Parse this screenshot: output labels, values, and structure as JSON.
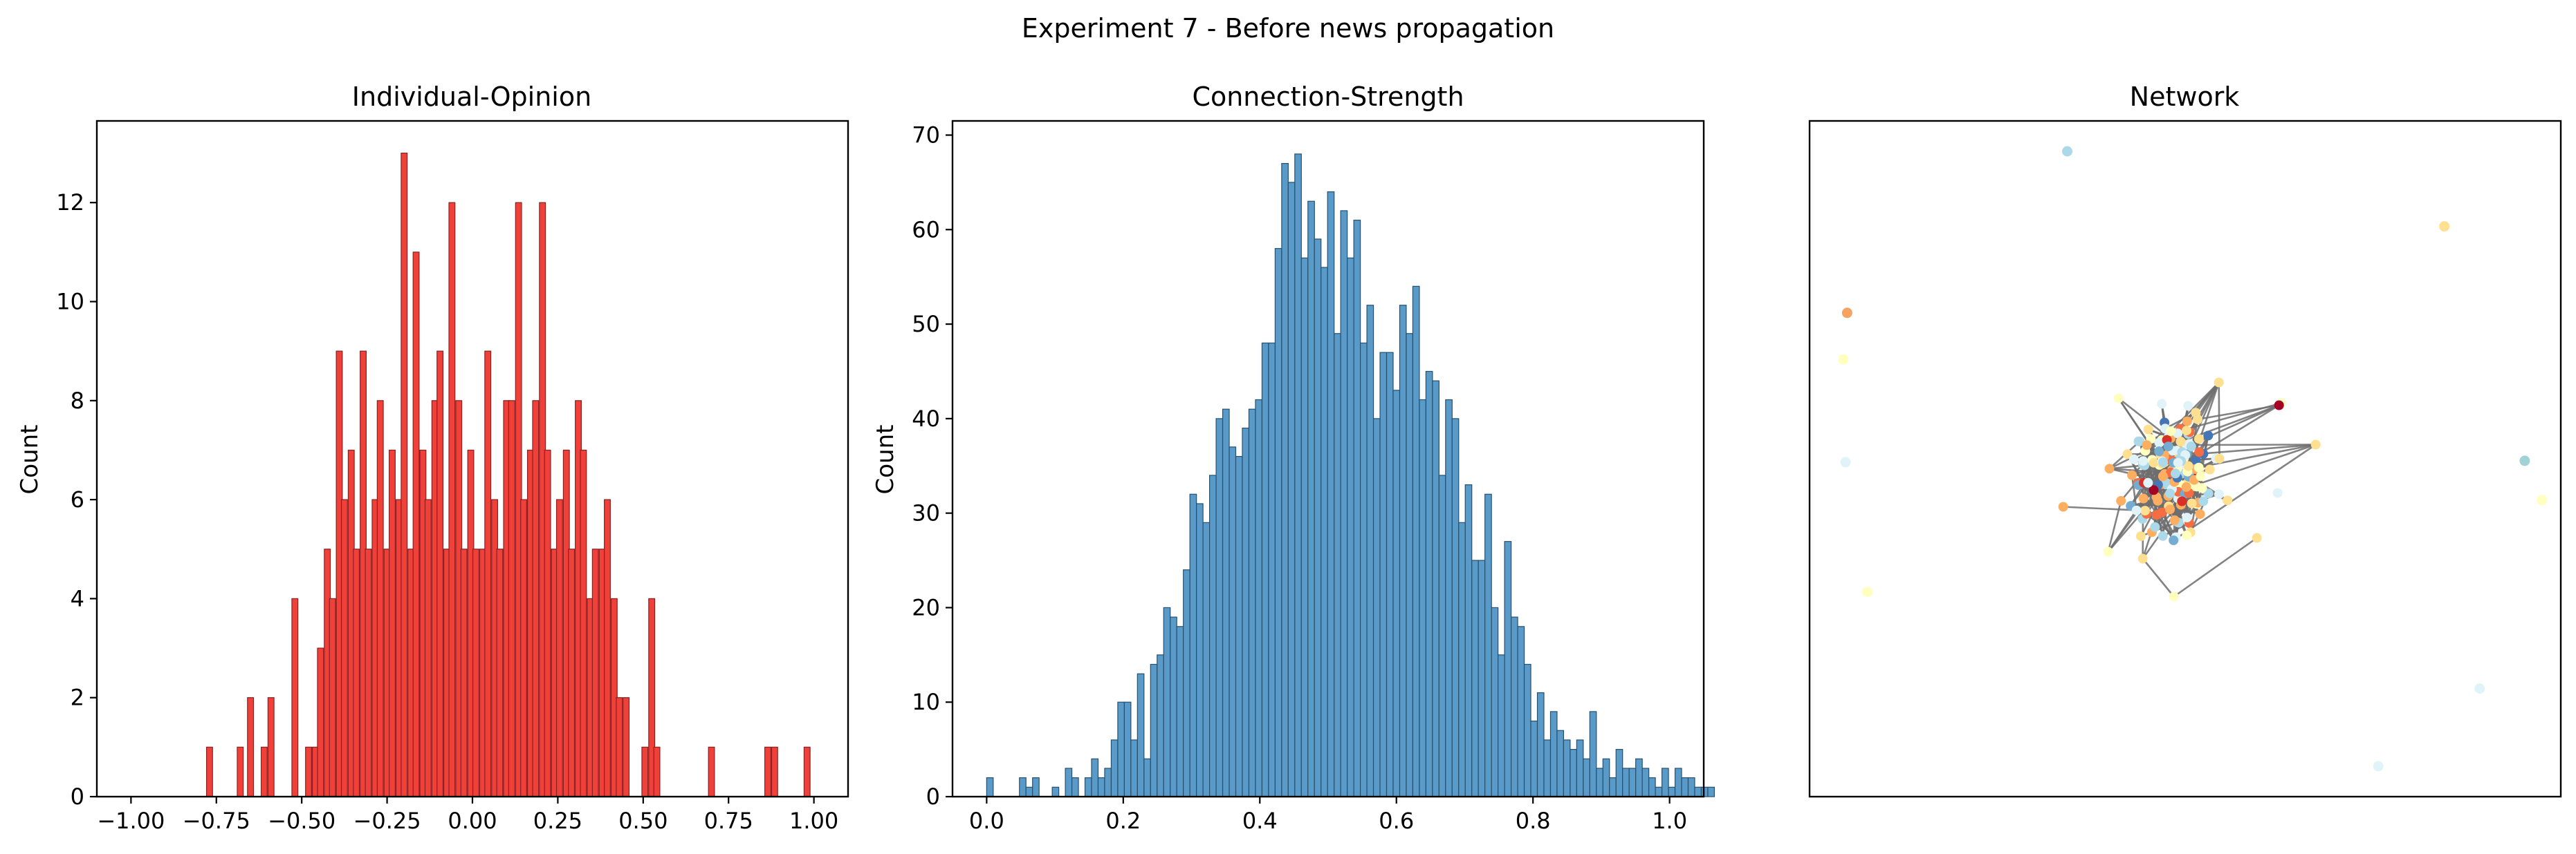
{
  "figure": {
    "suptitle": "Experiment 7 - Before news propagation"
  },
  "chart_data": [
    {
      "type": "bar",
      "title": "Individual-Opinion",
      "xlabel": "",
      "ylabel": "Count",
      "xlim": [
        -1.1,
        1.1
      ],
      "ylim": [
        0,
        13.65
      ],
      "x_ticks": [
        -1.0,
        -0.75,
        -0.5,
        -0.25,
        0.0,
        0.25,
        0.5,
        0.75,
        1.0
      ],
      "x_tick_labels": [
        "−1.00",
        "−0.75",
        "−0.50",
        "−0.25",
        "0.00",
        "0.25",
        "0.50",
        "0.75",
        "1.00"
      ],
      "y_ticks": [
        0,
        2,
        4,
        6,
        8,
        10,
        12
      ],
      "y_tick_labels": [
        "0",
        "2",
        "4",
        "6",
        "8",
        "10",
        "12"
      ],
      "bin_width": 0.0176,
      "bin_centers": [
        -0.77,
        -0.68,
        -0.65,
        -0.61,
        -0.59,
        -0.52,
        -0.48,
        -0.46,
        -0.445,
        -0.425,
        -0.41,
        -0.39,
        -0.375,
        -0.355,
        -0.34,
        -0.32,
        -0.305,
        -0.285,
        -0.27,
        -0.25,
        -0.235,
        -0.215,
        -0.2,
        -0.18,
        -0.165,
        -0.145,
        -0.13,
        -0.11,
        -0.095,
        -0.075,
        -0.06,
        -0.04,
        -0.025,
        -0.005,
        0.01,
        0.03,
        0.045,
        0.065,
        0.08,
        0.1,
        0.115,
        0.135,
        0.15,
        0.17,
        0.185,
        0.205,
        0.22,
        0.24,
        0.255,
        0.275,
        0.29,
        0.31,
        0.325,
        0.345,
        0.36,
        0.38,
        0.395,
        0.415,
        0.43,
        0.45,
        0.505,
        0.525,
        0.54,
        0.7,
        0.865,
        0.885,
        0.98
      ],
      "values": [
        1,
        1,
        2,
        1,
        2,
        4,
        1,
        1,
        3,
        5,
        4,
        9,
        6,
        7,
        5,
        9,
        5,
        6,
        8,
        5,
        7,
        6,
        13,
        5,
        11,
        7,
        6,
        8,
        9,
        5,
        12,
        8,
        5,
        7,
        5,
        5,
        9,
        6,
        5,
        8,
        8,
        12,
        6,
        7,
        8,
        12,
        7,
        5,
        6,
        7,
        5,
        8,
        7,
        4,
        5,
        5,
        6,
        4,
        2,
        2,
        1,
        4,
        1,
        1,
        1,
        1,
        1
      ],
      "color": "#f0403a"
    },
    {
      "type": "bar",
      "title": "Connection-Strength",
      "xlabel": "",
      "ylabel": "Count",
      "xlim": [
        -0.05,
        1.05
      ],
      "ylim": [
        0,
        71.5
      ],
      "x_ticks": [
        0.0,
        0.2,
        0.4,
        0.6,
        0.8,
        1.0
      ],
      "x_tick_labels": [
        "0.0",
        "0.2",
        "0.4",
        "0.6",
        "0.8",
        "1.0"
      ],
      "y_ticks": [
        0,
        10,
        20,
        30,
        40,
        50,
        60,
        70
      ],
      "y_tick_labels": [
        "0",
        "10",
        "20",
        "30",
        "40",
        "50",
        "60",
        "70"
      ],
      "bin_start": 0.0,
      "bin_width": 0.0096,
      "values": [
        2,
        0,
        0,
        0,
        0,
        2,
        1,
        2,
        0,
        0,
        1,
        0,
        3,
        2,
        0,
        2,
        4,
        2,
        3,
        6,
        10,
        10,
        6,
        13,
        4,
        14,
        15,
        20,
        19,
        18,
        24,
        32,
        31,
        29,
        34,
        40,
        41,
        37,
        36,
        39,
        41,
        42,
        48,
        48,
        58,
        67,
        65,
        68,
        57,
        63,
        59,
        56,
        64,
        49,
        62,
        57,
        61,
        48,
        52,
        40,
        47,
        47,
        43,
        52,
        49,
        54,
        42,
        45,
        44,
        34,
        42,
        40,
        29,
        33,
        25,
        25,
        32,
        20,
        15,
        27,
        19,
        18,
        14,
        8,
        11,
        6,
        9,
        7,
        6,
        5,
        6,
        4,
        9,
        3,
        4,
        2,
        5,
        3,
        3,
        4,
        3,
        2,
        1,
        3,
        1,
        3,
        2,
        2,
        1,
        1,
        1
      ],
      "color": "#5a9ac8"
    },
    {
      "type": "network",
      "title": "Network",
      "palette": [
        "#a50026",
        "#d73027",
        "#f46d43",
        "#fdae61",
        "#fee090",
        "#ffffbf",
        "#e0f3f8",
        "#abd9e9",
        "#74add1",
        "#4575b4"
      ],
      "isolated_nodes": [
        {
          "x": 0.343,
          "y": 0.955,
          "color": "#abd9e9"
        },
        {
          "x": 0.845,
          "y": 0.844,
          "color": "#fee090"
        },
        {
          "x": 0.05,
          "y": 0.716,
          "color": "#f4a460"
        },
        {
          "x": 0.045,
          "y": 0.647,
          "color": "#ffffbf"
        },
        {
          "x": 0.048,
          "y": 0.495,
          "color": "#e0f3f8"
        },
        {
          "x": 0.952,
          "y": 0.497,
          "color": "#a0d2d6"
        },
        {
          "x": 0.975,
          "y": 0.439,
          "color": "#ffffbf"
        },
        {
          "x": 0.077,
          "y": 0.303,
          "color": "#ffffbf"
        },
        {
          "x": 0.892,
          "y": 0.16,
          "color": "#e0f3f8"
        },
        {
          "x": 0.757,
          "y": 0.045,
          "color": "#e0f3f8"
        }
      ],
      "cluster_center": [
        0.485,
        0.475
      ],
      "cluster_node_count": 160
    }
  ]
}
